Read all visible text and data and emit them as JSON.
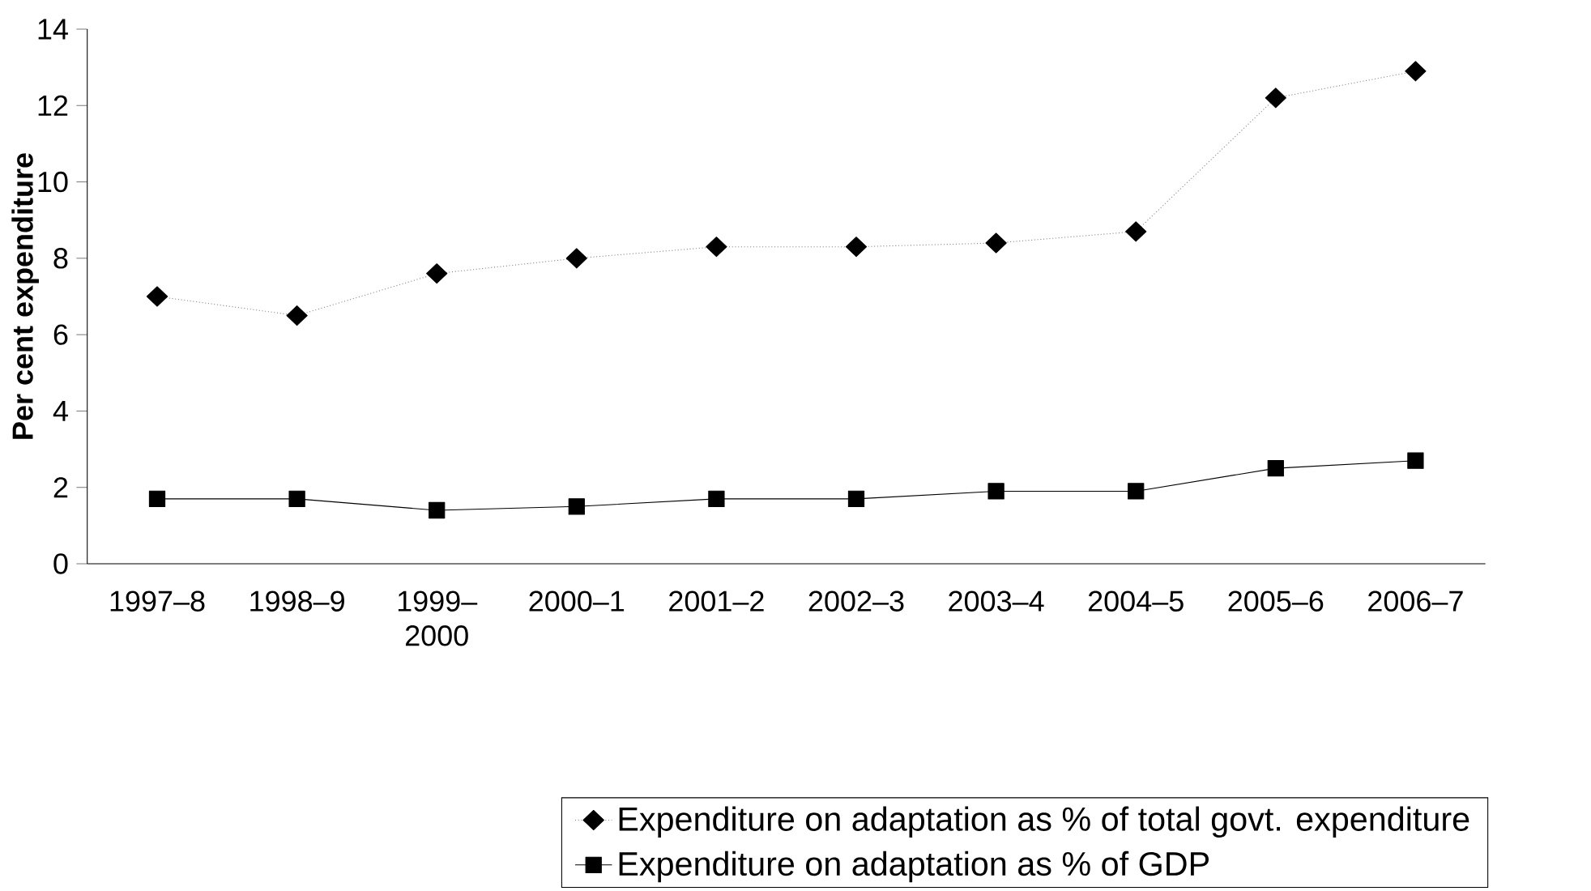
{
  "chart_data": {
    "type": "line",
    "ylabel": "Per cent expenditure",
    "categories": [
      "1997–8",
      "1998–9",
      "1999–2000",
      "2000–1",
      "2001–2",
      "2002–3",
      "2003–4",
      "2004–5",
      "2005–6",
      "2006–7"
    ],
    "series": [
      {
        "name": "Expenditure on adaptation as % of total govt. expenditure",
        "color": "#000000",
        "marker": "diamond",
        "line_style": "dotted",
        "values": [
          7.0,
          6.5,
          7.6,
          8.0,
          8.3,
          8.3,
          8.4,
          8.7,
          12.2,
          12.9
        ]
      },
      {
        "name": "Expenditure on adaptation as % of GDP",
        "color": "#000000",
        "marker": "square",
        "line_style": "solid",
        "values": [
          1.7,
          1.7,
          1.4,
          1.5,
          1.7,
          1.7,
          1.9,
          1.9,
          2.5,
          2.7
        ]
      }
    ],
    "ylim": [
      0,
      14
    ],
    "yticks": [
      0,
      2,
      4,
      6,
      8,
      10,
      12,
      14
    ],
    "grid": false,
    "legend": "bottom"
  }
}
